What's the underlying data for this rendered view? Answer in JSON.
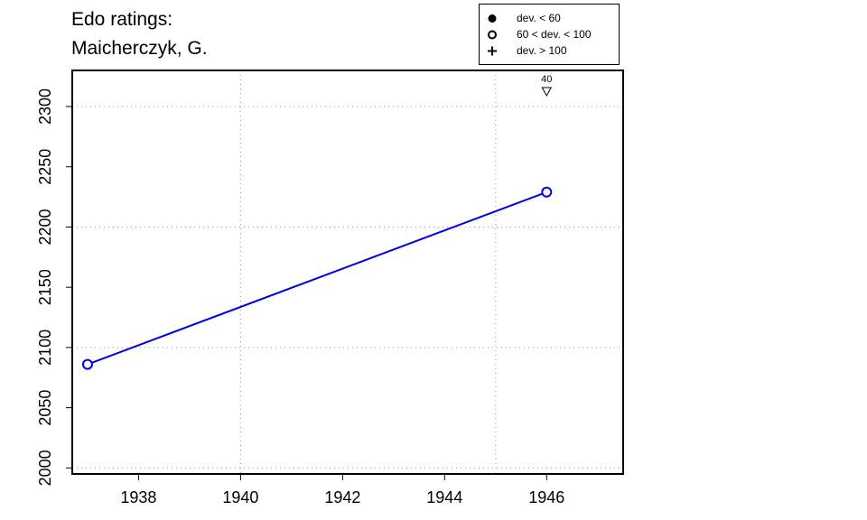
{
  "chart_data": {
    "type": "line",
    "title": [
      "Edo ratings:",
      "Maicherczyk, G."
    ],
    "xlabel": "",
    "ylabel": "",
    "xlim": [
      1936.7,
      1947.5
    ],
    "ylim": [
      1995,
      2330
    ],
    "xticks": [
      1938,
      1940,
      1942,
      1944,
      1946
    ],
    "yticks": [
      2000,
      2050,
      2100,
      2150,
      2200,
      2250,
      2300
    ],
    "grid_x": [
      1940,
      1945
    ],
    "grid_y": [
      2000,
      2100,
      2200,
      2300
    ],
    "grid": "dotted",
    "series": [
      {
        "color": "#0000ee",
        "marker": "open-circle",
        "points": [
          {
            "x": 1937,
            "y": 2086
          },
          {
            "x": 1946,
            "y": 2229
          }
        ]
      }
    ],
    "annotations": [
      {
        "x": 1946,
        "label": "40",
        "marker": "down-triangle",
        "meaning": "off-scale above plot"
      }
    ],
    "legend": {
      "placement": "top-right",
      "entries": [
        {
          "symbol": "filled-circle",
          "label": "dev. < 60"
        },
        {
          "symbol": "open-circle",
          "label": "60 < dev. < 100"
        },
        {
          "symbol": "plus",
          "label": "dev. > 100"
        }
      ]
    }
  }
}
